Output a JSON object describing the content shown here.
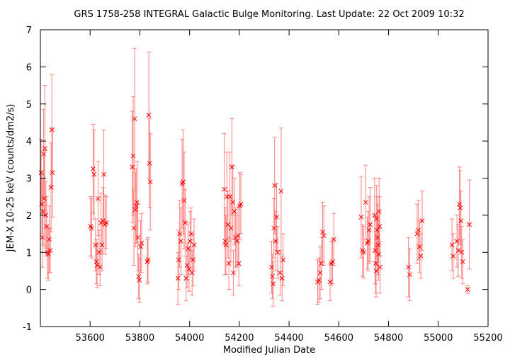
{
  "chart_data": {
    "type": "scatter",
    "title": "GRS 1758-258   INTEGRAL Galactic Bulge Monitoring.  Last Update: 22 Oct 2009 10:32",
    "xlabel": "Modified Julian Date",
    "ylabel": "JEM-X 10-25 keV (counts/dm2/s)",
    "xlim": [
      53400,
      55200
    ],
    "ylim": [
      -1,
      7
    ],
    "xticks": [
      53600,
      53800,
      54000,
      54200,
      54400,
      54600,
      54800,
      55000,
      55200
    ],
    "yticks": [
      -1,
      0,
      1,
      2,
      3,
      4,
      5,
      6,
      7
    ],
    "grid": false,
    "legend": "none",
    "marker": "x",
    "series_color": "#ff0000",
    "errorbar_color": "#ff8080",
    "series": [
      {
        "points": [
          [
            53403,
            3.15,
            0.9
          ],
          [
            53406,
            2.3,
            0.8
          ],
          [
            53408,
            1.4,
            0.8
          ],
          [
            53410,
            2.1,
            0.9
          ],
          [
            53413,
            3.65,
            1.2
          ],
          [
            53415,
            2.45,
            1.3
          ],
          [
            53418,
            3.8,
            1.7
          ],
          [
            53422,
            2.0,
            0.9
          ],
          [
            53425,
            1.7,
            0.8
          ],
          [
            53428,
            1.0,
            0.7
          ],
          [
            53432,
            0.95,
            0.7
          ],
          [
            53436,
            1.35,
            0.9
          ],
          [
            53440,
            1.05,
            0.6
          ],
          [
            53443,
            2.75,
            1.2
          ],
          [
            53446,
            4.3,
            1.5
          ],
          [
            53449,
            3.15,
            1.2
          ],
          [
            53602,
            1.7,
            0.8
          ],
          [
            53606,
            1.65,
            0.8
          ],
          [
            53612,
            3.25,
            1.2
          ],
          [
            53616,
            3.1,
            1.2
          ],
          [
            53622,
            1.2,
            0.7
          ],
          [
            53625,
            0.75,
            0.6
          ],
          [
            53628,
            0.65,
            0.6
          ],
          [
            53632,
            2.45,
            1.0
          ],
          [
            53636,
            1.0,
            0.6
          ],
          [
            53640,
            0.6,
            0.5
          ],
          [
            53644,
            1.8,
            0.8
          ],
          [
            53648,
            1.2,
            0.7
          ],
          [
            53652,
            1.85,
            0.9
          ],
          [
            53655,
            3.1,
            1.2
          ],
          [
            53660,
            1.75,
            0.8
          ],
          [
            53665,
            1.8,
            0.7
          ],
          [
            53770,
            3.3,
            1.5
          ],
          [
            53773,
            3.6,
            1.6
          ],
          [
            53776,
            1.65,
            1.0
          ],
          [
            53779,
            4.6,
            1.9
          ],
          [
            53782,
            2.15,
            1.0
          ],
          [
            53785,
            2.25,
            1.0
          ],
          [
            53789,
            2.35,
            1.1
          ],
          [
            53792,
            1.4,
            0.9
          ],
          [
            53795,
            0.35,
            0.6
          ],
          [
            53798,
            0.25,
            0.6
          ],
          [
            53803,
            1.15,
            0.7
          ],
          [
            53807,
            1.25,
            0.8
          ],
          [
            53830,
            0.75,
            0.6
          ],
          [
            53833,
            0.8,
            0.6
          ],
          [
            53836,
            4.7,
            1.7
          ],
          [
            53839,
            3.4,
            1.2
          ],
          [
            53842,
            2.9,
            1.3
          ],
          [
            53953,
            0.3,
            0.7
          ],
          [
            53956,
            0.8,
            0.8
          ],
          [
            53960,
            1.5,
            0.9
          ],
          [
            53965,
            1.3,
            0.9
          ],
          [
            53970,
            2.85,
            1.2
          ],
          [
            53974,
            2.9,
            1.4
          ],
          [
            53978,
            2.4,
            1.3
          ],
          [
            53982,
            1.8,
            0.9
          ],
          [
            53986,
            0.3,
            0.6
          ],
          [
            53990,
            0.65,
            0.6
          ],
          [
            53994,
            1.1,
            0.7
          ],
          [
            53998,
            0.55,
            0.6
          ],
          [
            54002,
            1.3,
            0.8
          ],
          [
            54006,
            1.5,
            0.7
          ],
          [
            54010,
            0.45,
            0.6
          ],
          [
            54014,
            0.8,
            0.7
          ],
          [
            54018,
            1.2,
            0.7
          ],
          [
            54140,
            2.7,
            1.5
          ],
          [
            54143,
            1.3,
            0.9
          ],
          [
            54146,
            1.2,
            0.8
          ],
          [
            54150,
            2.5,
            1.2
          ],
          [
            54154,
            1.75,
            0.9
          ],
          [
            54158,
            0.7,
            0.7
          ],
          [
            54162,
            2.5,
            1.2
          ],
          [
            54166,
            1.65,
            0.9
          ],
          [
            54170,
            3.3,
            1.3
          ],
          [
            54174,
            2.35,
            1.0
          ],
          [
            54176,
            0.45,
            0.6
          ],
          [
            54180,
            2.1,
            0.9
          ],
          [
            54185,
            1.4,
            0.8
          ],
          [
            54190,
            1.3,
            0.7
          ],
          [
            54195,
            1.45,
            0.8
          ],
          [
            54198,
            0.7,
            0.6
          ],
          [
            54202,
            2.25,
            0.9
          ],
          [
            54206,
            2.3,
            0.8
          ],
          [
            54330,
            0.6,
            0.7
          ],
          [
            54333,
            0.35,
            0.6
          ],
          [
            54336,
            0.15,
            0.6
          ],
          [
            54339,
            1.65,
            0.8
          ],
          [
            54342,
            2.8,
            1.3
          ],
          [
            54346,
            1.3,
            0.8
          ],
          [
            54350,
            1.95,
            0.9
          ],
          [
            54354,
            1.0,
            0.7
          ],
          [
            54364,
            0.45,
            0.6
          ],
          [
            54368,
            2.65,
            1.7
          ],
          [
            54372,
            0.3,
            0.6
          ],
          [
            54376,
            0.8,
            0.7
          ],
          [
            54515,
            0.2,
            0.6
          ],
          [
            54520,
            0.25,
            0.6
          ],
          [
            54525,
            0.45,
            0.7
          ],
          [
            54530,
            0.7,
            0.7
          ],
          [
            54535,
            1.55,
            0.8
          ],
          [
            54540,
            1.45,
            0.8
          ],
          [
            54565,
            0.2,
            0.5
          ],
          [
            54570,
            0.7,
            0.6
          ],
          [
            54575,
            0.75,
            0.6
          ],
          [
            54580,
            1.35,
            0.7
          ],
          [
            54690,
            1.95,
            1.1
          ],
          [
            54695,
            1.05,
            0.7
          ],
          [
            54700,
            1.0,
            0.7
          ],
          [
            54708,
            2.35,
            1.0
          ],
          [
            54714,
            1.25,
            0.7
          ],
          [
            54718,
            1.3,
            0.8
          ],
          [
            54722,
            1.6,
            0.9
          ],
          [
            54726,
            1.75,
            1.0
          ],
          [
            54744,
            2.0,
            1.0
          ],
          [
            54746,
            1.05,
            0.9
          ],
          [
            54748,
            0.7,
            0.8
          ],
          [
            54750,
            0.5,
            0.7
          ],
          [
            54752,
            1.9,
            0.9
          ],
          [
            54754,
            1.6,
            0.9
          ],
          [
            54756,
            1.4,
            0.9
          ],
          [
            54758,
            1.2,
            0.8
          ],
          [
            54760,
            0.95,
            0.7
          ],
          [
            54762,
            2.1,
            0.9
          ],
          [
            54764,
            1.7,
            0.8
          ],
          [
            54766,
            0.6,
            0.7
          ],
          [
            54880,
            0.6,
            0.8
          ],
          [
            54885,
            0.4,
            0.7
          ],
          [
            54915,
            1.5,
            0.8
          ],
          [
            54920,
            1.6,
            0.8
          ],
          [
            54925,
            1.15,
            0.7
          ],
          [
            54930,
            0.9,
            0.6
          ],
          [
            54935,
            1.85,
            0.8
          ],
          [
            55055,
            1.2,
            0.7
          ],
          [
            55060,
            0.9,
            0.6
          ],
          [
            55075,
            1.3,
            0.7
          ],
          [
            55080,
            1.05,
            0.7
          ],
          [
            55085,
            2.3,
            1.0
          ],
          [
            55088,
            2.2,
            1.0
          ],
          [
            55091,
            1.85,
            0.8
          ],
          [
            55094,
            1.0,
            0.7
          ],
          [
            55098,
            0.75,
            0.6
          ],
          [
            55118,
            0.0,
            0.1
          ],
          [
            55125,
            1.75,
            1.2
          ]
        ]
      }
    ]
  }
}
